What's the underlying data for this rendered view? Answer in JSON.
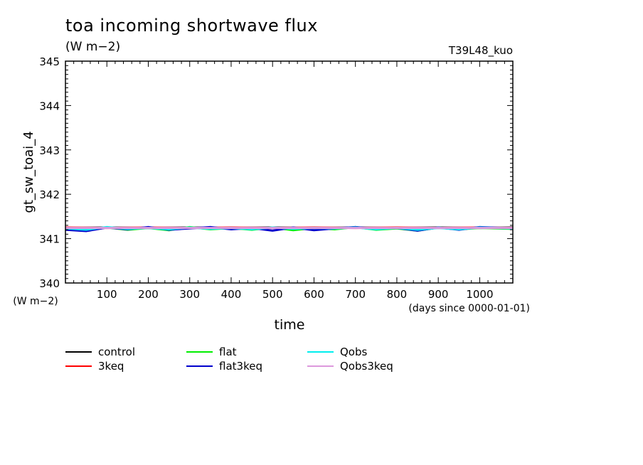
{
  "header": {
    "title": "toa incoming shortwave flux",
    "units": "(W m−2)",
    "run_tag": "T39L48_kuo"
  },
  "chart_data": {
    "type": "line",
    "ylabel": "gt_sw_toai_4",
    "y_units": "(W m−2)",
    "xlabel": "time",
    "x_units": "(days since 0000-01-01)",
    "xlim": [
      0,
      1080
    ],
    "ylim": [
      340,
      345
    ],
    "x_ticks": [
      100,
      200,
      300,
      400,
      500,
      600,
      700,
      800,
      900,
      1000
    ],
    "y_ticks": [
      340,
      341,
      342,
      343,
      344,
      345
    ],
    "grid": false,
    "legend_position": "bottom",
    "series": [
      {
        "name": "control",
        "color": "#000000",
        "values": [
          [
            0,
            341.24
          ],
          [
            100,
            341.25
          ],
          [
            200,
            341.24
          ],
          [
            300,
            341.25
          ],
          [
            400,
            341.24
          ],
          [
            500,
            341.25
          ],
          [
            600,
            341.24
          ],
          [
            700,
            341.25
          ],
          [
            800,
            341.24
          ],
          [
            900,
            341.25
          ],
          [
            1000,
            341.24
          ],
          [
            1080,
            341.25
          ]
        ]
      },
      {
        "name": "3keq",
        "color": "#ff0000",
        "values": [
          [
            0,
            341.25
          ],
          [
            100,
            341.24
          ],
          [
            200,
            341.25
          ],
          [
            300,
            341.24
          ],
          [
            400,
            341.25
          ],
          [
            500,
            341.24
          ],
          [
            600,
            341.25
          ],
          [
            700,
            341.24
          ],
          [
            800,
            341.25
          ],
          [
            900,
            341.24
          ],
          [
            1000,
            341.25
          ],
          [
            1080,
            341.24
          ]
        ]
      },
      {
        "name": "flat",
        "color": "#00ee00",
        "values": [
          [
            0,
            341.22
          ],
          [
            50,
            341.18
          ],
          [
            100,
            341.25
          ],
          [
            150,
            341.2
          ],
          [
            200,
            341.24
          ],
          [
            250,
            341.19
          ],
          [
            300,
            341.26
          ],
          [
            350,
            341.21
          ],
          [
            400,
            341.24
          ],
          [
            450,
            341.2
          ],
          [
            500,
            341.25
          ],
          [
            550,
            341.19
          ],
          [
            600,
            341.24
          ],
          [
            650,
            341.21
          ],
          [
            700,
            341.26
          ],
          [
            750,
            341.2
          ],
          [
            800,
            341.23
          ],
          [
            850,
            341.18
          ],
          [
            900,
            341.25
          ],
          [
            950,
            341.21
          ],
          [
            1000,
            341.24
          ],
          [
            1080,
            341.22
          ]
        ]
      },
      {
        "name": "flat3keq",
        "color": "#0000cc",
        "values": [
          [
            0,
            341.2
          ],
          [
            50,
            341.17
          ],
          [
            100,
            341.25
          ],
          [
            150,
            341.21
          ],
          [
            200,
            341.26
          ],
          [
            250,
            341.2
          ],
          [
            300,
            341.23
          ],
          [
            350,
            341.26
          ],
          [
            400,
            341.21
          ],
          [
            450,
            341.24
          ],
          [
            500,
            341.18
          ],
          [
            550,
            341.25
          ],
          [
            600,
            341.19
          ],
          [
            650,
            341.23
          ],
          [
            700,
            341.26
          ],
          [
            750,
            341.22
          ],
          [
            800,
            341.24
          ],
          [
            850,
            341.18
          ],
          [
            900,
            341.25
          ],
          [
            950,
            341.2
          ],
          [
            1000,
            341.26
          ],
          [
            1080,
            341.23
          ]
        ]
      },
      {
        "name": "Qobs",
        "color": "#00eeee",
        "values": [
          [
            0,
            341.23
          ],
          [
            50,
            341.2
          ],
          [
            100,
            341.26
          ],
          [
            150,
            341.22
          ],
          [
            200,
            341.24
          ],
          [
            250,
            341.21
          ],
          [
            300,
            341.25
          ],
          [
            350,
            341.22
          ],
          [
            400,
            341.24
          ],
          [
            450,
            341.21
          ],
          [
            500,
            341.25
          ],
          [
            550,
            341.22
          ],
          [
            600,
            341.24
          ],
          [
            650,
            341.23
          ],
          [
            700,
            341.25
          ],
          [
            750,
            341.21
          ],
          [
            800,
            341.24
          ],
          [
            850,
            341.2
          ],
          [
            900,
            341.24
          ],
          [
            950,
            341.21
          ],
          [
            1000,
            341.25
          ],
          [
            1080,
            341.23
          ]
        ]
      },
      {
        "name": "Qobs3keq",
        "color": "#dd99dd",
        "values": [
          [
            0,
            341.24
          ],
          [
            100,
            341.24
          ],
          [
            200,
            341.24
          ],
          [
            300,
            341.24
          ],
          [
            400,
            341.24
          ],
          [
            500,
            341.24
          ],
          [
            600,
            341.24
          ],
          [
            700,
            341.24
          ],
          [
            800,
            341.24
          ],
          [
            900,
            341.24
          ],
          [
            1000,
            341.24
          ],
          [
            1080,
            341.24
          ]
        ]
      }
    ]
  }
}
